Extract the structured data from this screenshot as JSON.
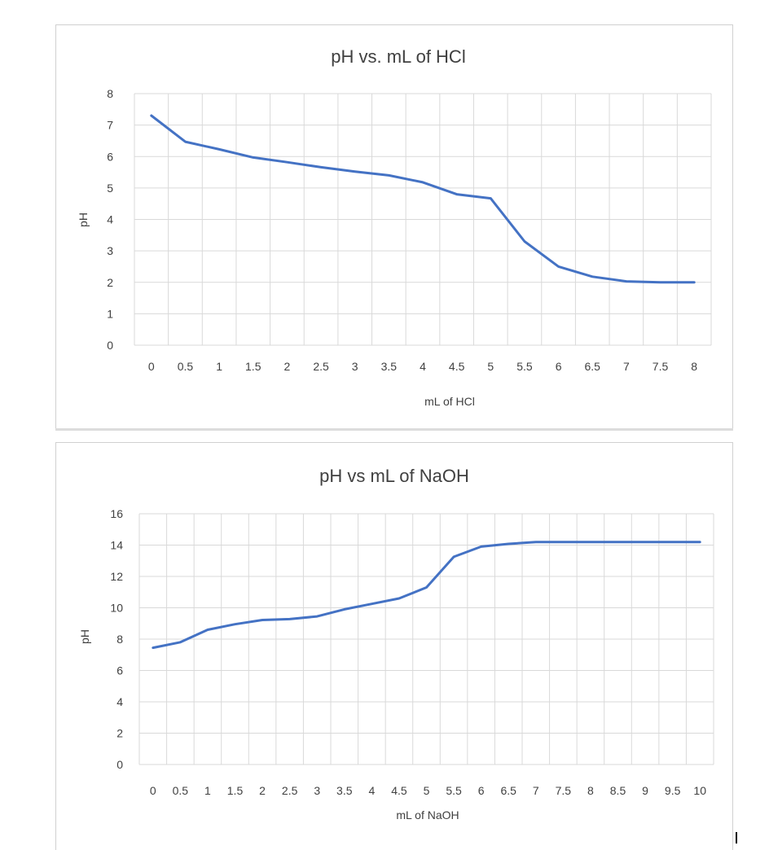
{
  "colors": {
    "series": "#4472c4",
    "grid": "#d9d9d9",
    "text": "#404040"
  },
  "chart_data": [
    {
      "type": "line",
      "title": "pH vs. mL of HCl",
      "xlabel": "mL of HCl",
      "ylabel": "pH",
      "ylim": [
        0,
        8
      ],
      "yticks": [
        "0",
        "1",
        "2",
        "3",
        "4",
        "5",
        "6",
        "7",
        "8"
      ],
      "categories": [
        "0",
        "0.5",
        "1",
        "1.5",
        "2",
        "2.5",
        "3",
        "3.5",
        "4",
        "4.5",
        "5",
        "5.5",
        "6",
        "6.5",
        "7",
        "7.5",
        "8"
      ],
      "grid": true,
      "series": [
        {
          "values": [
            7.3,
            6.47,
            6.23,
            5.97,
            5.82,
            5.66,
            5.52,
            5.4,
            5.18,
            4.8,
            4.67,
            3.3,
            2.5,
            2.18,
            2.03,
            2.0,
            2.0
          ]
        }
      ]
    },
    {
      "type": "line",
      "title": "pH vs mL of NaOH",
      "xlabel": "mL of NaOH",
      "ylabel": "pH",
      "ylim": [
        0,
        16
      ],
      "yticks": [
        "0",
        "2",
        "4",
        "6",
        "8",
        "10",
        "12",
        "14",
        "16"
      ],
      "categories": [
        "0",
        "0.5",
        "1",
        "1.5",
        "2",
        "2.5",
        "3",
        "3.5",
        "4",
        "4.5",
        "5",
        "5.5",
        "6",
        "6.5",
        "7",
        "7.5",
        "8",
        "8.5",
        "9",
        "9.5",
        "10"
      ],
      "grid": true,
      "series": [
        {
          "values": [
            7.45,
            7.8,
            8.6,
            8.95,
            9.22,
            9.28,
            9.45,
            9.9,
            10.25,
            10.6,
            11.3,
            13.25,
            13.9,
            14.08,
            14.2,
            14.2,
            14.2,
            14.2,
            14.2,
            14.2,
            14.2
          ]
        }
      ]
    }
  ]
}
